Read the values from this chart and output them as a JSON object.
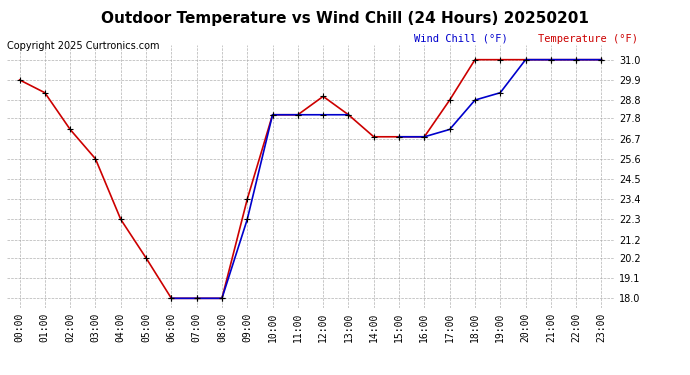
{
  "title": "Outdoor Temperature vs Wind Chill (24 Hours) 20250201",
  "copyright": "Copyright 2025 Curtronics.com",
  "legend_wind_chill": "Wind Chill (°F)",
  "legend_temperature": "Temperature (°F)",
  "hours": [
    0,
    1,
    2,
    3,
    4,
    5,
    6,
    7,
    8,
    9,
    10,
    11,
    12,
    13,
    14,
    15,
    16,
    17,
    18,
    19,
    20,
    21,
    22,
    23
  ],
  "temperature": [
    29.9,
    29.2,
    27.2,
    25.6,
    22.3,
    20.2,
    18.0,
    18.0,
    18.0,
    23.4,
    28.0,
    28.0,
    29.0,
    28.0,
    26.8,
    26.8,
    26.8,
    28.8,
    31.0,
    31.0,
    31.0,
    31.0,
    31.0,
    31.0
  ],
  "wind_chill": [
    null,
    null,
    null,
    null,
    null,
    null,
    18.0,
    18.0,
    18.0,
    22.3,
    28.0,
    28.0,
    28.0,
    28.0,
    null,
    26.8,
    26.8,
    27.2,
    28.8,
    29.2,
    31.0,
    31.0,
    31.0,
    31.0
  ],
  "temp_color": "#cc0000",
  "wind_color": "#0000cc",
  "markersize": 5,
  "linewidth": 1.2,
  "ylim_min": 17.5,
  "ylim_max": 31.8,
  "yticks": [
    18.0,
    19.1,
    20.2,
    21.2,
    22.3,
    23.4,
    24.5,
    25.6,
    26.7,
    27.8,
    28.8,
    29.9,
    31.0
  ],
  "bg_color": "#ffffff",
  "grid_color": "#aaaaaa",
  "title_fontsize": 11,
  "tick_fontsize": 7,
  "copyright_fontsize": 7,
  "legend_fontsize": 7.5
}
